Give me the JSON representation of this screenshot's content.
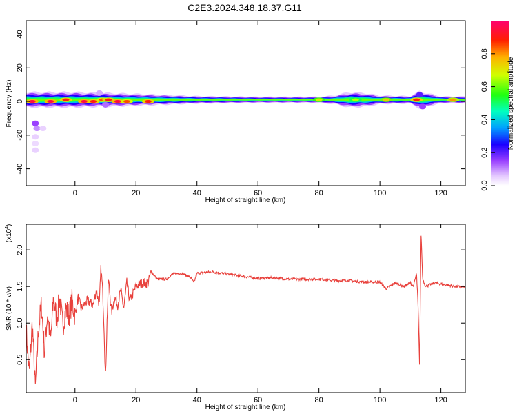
{
  "title": "C2E3.2024.348.18.37.G11",
  "colorbar": {
    "label": "Normalized spectral amplitude",
    "ticks": [
      "0.0",
      "0.2",
      "0.4",
      "0.6",
      "0.8"
    ]
  },
  "chart_data": [
    {
      "type": "heatmap",
      "xlabel": "Height of straight line (km)",
      "ylabel": "Frequency (Hz)",
      "xlim": [
        -16,
        128
      ],
      "ylim": [
        -50,
        48
      ],
      "xticks": [
        "0",
        "20",
        "40",
        "60",
        "80",
        "100",
        "120"
      ],
      "yticks": [
        "-40",
        "-20",
        "0",
        "20",
        "40"
      ],
      "grid": false,
      "band": {
        "center_hz": 1,
        "half_width_hz": [
          [
            -16,
            4.5
          ],
          [
            0,
            4.5
          ],
          [
            20,
            3.5
          ],
          [
            40,
            2.2
          ],
          [
            60,
            1.8
          ],
          [
            80,
            1.8
          ],
          [
            85,
            2.5
          ],
          [
            90,
            4.5
          ],
          [
            95,
            4.0
          ],
          [
            100,
            2.5
          ],
          [
            110,
            2.2
          ],
          [
            113,
            5
          ],
          [
            120,
            2.0
          ],
          [
            128,
            2.0
          ]
        ],
        "peaks": [
          {
            "x": -14,
            "y": 0,
            "v": 0.95
          },
          {
            "x": -8,
            "y": 0,
            "v": 0.95
          },
          {
            "x": -3,
            "y": 1,
            "v": 0.9
          },
          {
            "x": 3,
            "y": 0,
            "v": 0.95
          },
          {
            "x": 6,
            "y": 0,
            "v": 0.9
          },
          {
            "x": 9,
            "y": 1,
            "v": 0.85
          },
          {
            "x": 11,
            "y": 1,
            "v": 0.9
          },
          {
            "x": 14,
            "y": 0,
            "v": 0.95
          },
          {
            "x": 17,
            "y": 0,
            "v": 0.85
          },
          {
            "x": 24,
            "y": 0,
            "v": 0.9
          },
          {
            "x": 80,
            "y": 1,
            "v": 0.7
          },
          {
            "x": 92,
            "y": 1,
            "v": 0.65
          },
          {
            "x": 102,
            "y": 1,
            "v": 0.75
          },
          {
            "x": 112,
            "y": 1,
            "v": 0.9
          },
          {
            "x": 124,
            "y": 1,
            "v": 0.8
          }
        ],
        "spots": [
          {
            "x": -13,
            "y": -13,
            "v": 0.15
          },
          {
            "x": -12.5,
            "y": -16,
            "v": 0.1
          },
          {
            "x": -10.5,
            "y": -16,
            "v": 0.05
          },
          {
            "x": -13,
            "y": -21,
            "v": 0.05
          },
          {
            "x": -13,
            "y": -25,
            "v": 0.04
          },
          {
            "x": -13,
            "y": -29,
            "v": 0.05
          },
          {
            "x": 8,
            "y": 5,
            "v": 0.08
          },
          {
            "x": 10,
            "y": -2,
            "v": 0.12
          },
          {
            "x": 113,
            "y": 4,
            "v": 0.2
          },
          {
            "x": 114,
            "y": -3,
            "v": 0.15
          }
        ]
      }
    },
    {
      "type": "line",
      "xlabel": "Height of straight line (km)",
      "ylabel": "SNR (10 * v/v)",
      "y_multiplier": "(x10",
      "y_multiplier_exp": "4",
      "xlim": [
        -16,
        128
      ],
      "ylim": [
        0.05,
        2.35
      ],
      "xticks": [
        "0",
        "20",
        "40",
        "60",
        "80",
        "100",
        "120"
      ],
      "yticks": [
        "0.5",
        "1.0",
        "1.5",
        "2.0"
      ],
      "grid": false,
      "series": [
        {
          "color": "#e8413c",
          "anchors": [
            [
              -16,
              0.9
            ],
            [
              -15,
              0.3
            ],
            [
              -14,
              1.0
            ],
            [
              -13,
              0.1
            ],
            [
              -12,
              0.9
            ],
            [
              -11,
              1.25
            ],
            [
              -10,
              0.6
            ],
            [
              -9,
              1.15
            ],
            [
              -8,
              0.75
            ],
            [
              -7,
              1.35
            ],
            [
              -6,
              1.05
            ],
            [
              -5,
              1.35
            ],
            [
              -4,
              0.95
            ],
            [
              -3,
              1.2
            ],
            [
              -2,
              1.1
            ],
            [
              -1,
              1.3
            ],
            [
              0,
              1.1
            ],
            [
              1,
              1.35
            ],
            [
              2,
              1.2
            ],
            [
              4,
              1.3
            ],
            [
              6,
              1.25
            ],
            [
              7,
              1.45
            ],
            [
              8,
              1.25
            ],
            [
              8.5,
              1.75
            ],
            [
              9,
              1.5
            ],
            [
              9.5,
              1.0
            ],
            [
              10,
              0.22
            ],
            [
              10.5,
              1.0
            ],
            [
              11,
              1.6
            ],
            [
              12,
              1.15
            ],
            [
              13,
              1.35
            ],
            [
              14,
              1.25
            ],
            [
              15,
              1.45
            ],
            [
              16,
              1.2
            ],
            [
              17,
              1.55
            ],
            [
              18,
              1.3
            ],
            [
              20,
              1.5
            ],
            [
              22,
              1.55
            ],
            [
              24,
              1.55
            ],
            [
              25,
              1.7
            ],
            [
              27,
              1.6
            ],
            [
              30,
              1.6
            ],
            [
              32,
              1.67
            ],
            [
              35,
              1.68
            ],
            [
              38,
              1.62
            ],
            [
              39,
              1.55
            ],
            [
              40,
              1.68
            ],
            [
              45,
              1.7
            ],
            [
              50,
              1.67
            ],
            [
              55,
              1.64
            ],
            [
              60,
              1.61
            ],
            [
              65,
              1.62
            ],
            [
              70,
              1.6
            ],
            [
              75,
              1.6
            ],
            [
              80,
              1.6
            ],
            [
              85,
              1.58
            ],
            [
              90,
              1.58
            ],
            [
              95,
              1.56
            ],
            [
              100,
              1.56
            ],
            [
              102,
              1.47
            ],
            [
              105,
              1.55
            ],
            [
              108,
              1.5
            ],
            [
              110,
              1.55
            ],
            [
              111,
              1.5
            ],
            [
              112,
              1.68
            ],
            [
              112.5,
              1.25
            ],
            [
              113,
              0.42
            ],
            [
              113.5,
              2.25
            ],
            [
              114,
              1.6
            ],
            [
              115,
              1.5
            ],
            [
              118,
              1.55
            ],
            [
              122,
              1.52
            ],
            [
              125,
              1.5
            ],
            [
              128,
              1.49
            ]
          ]
        }
      ]
    }
  ]
}
